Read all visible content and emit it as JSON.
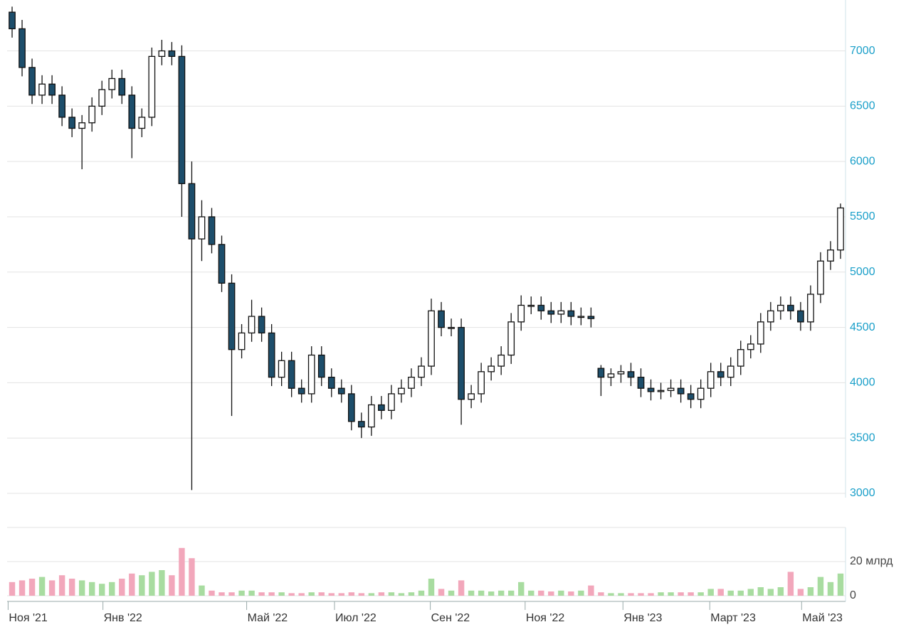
{
  "chart_data": {
    "type": "candlestick",
    "xlim": [
      -0.5,
      83.5
    ],
    "xticks": [
      {
        "value": -0.4,
        "label": "Ноя '21"
      },
      {
        "value": 9.1,
        "label": "Янв '22"
      },
      {
        "value": 23.5,
        "label": "Май '22"
      },
      {
        "value": 32.3,
        "label": "Июл '22"
      },
      {
        "value": 41.9,
        "label": "Сен '22"
      },
      {
        "value": 51.4,
        "label": "Ноя '22"
      },
      {
        "value": 61.2,
        "label": "Янв '23"
      },
      {
        "value": 69.9,
        "label": "Март '23"
      },
      {
        "value": 79.1,
        "label": "Май '23"
      }
    ],
    "ylim": [
      3000,
      7460
    ],
    "yticks": [
      3000,
      3500,
      4000,
      4500,
      5000,
      5500,
      6000,
      6500,
      7000
    ],
    "grid": true,
    "up_color": "#ffffff",
    "down_color": "#1d4e6b",
    "open": [
      7350,
      7200,
      6850,
      6600,
      6700,
      6600,
      6400,
      6300,
      6350,
      6500,
      6650,
      6750,
      6600,
      6300,
      6400,
      6950,
      7000,
      6950,
      5800,
      5300,
      5500,
      5250,
      4900,
      4300,
      4450,
      4600,
      4450,
      4050,
      4200,
      3950,
      3900,
      4250,
      4050,
      3950,
      3900,
      3650,
      3600,
      3800,
      3750,
      3900,
      3950,
      4050,
      4150,
      4650,
      4500,
      4500,
      3850,
      3900,
      4100,
      4150,
      4250,
      4550,
      4700,
      4700,
      4650,
      4620,
      4650,
      4600,
      4600,
      4130,
      4050,
      4080,
      4100,
      4050,
      3950,
      3920,
      3930,
      3950,
      3900,
      3850,
      3950,
      4100,
      4050,
      4150,
      4300,
      4350,
      4550,
      4650,
      4700,
      4650,
      4550,
      4800,
      5100,
      5200
    ],
    "high": [
      7400,
      7280,
      6930,
      6780,
      6780,
      6680,
      6480,
      6420,
      6580,
      6730,
      6830,
      6830,
      6680,
      6480,
      7030,
      7100,
      7080,
      7050,
      6000,
      5650,
      5580,
      5330,
      4980,
      4530,
      4750,
      4680,
      4530,
      4280,
      4280,
      4030,
      4330,
      4330,
      4130,
      4030,
      3980,
      3730,
      3880,
      3880,
      3980,
      4030,
      4130,
      4230,
      4760,
      4730,
      4580,
      4580,
      3980,
      4180,
      4230,
      4330,
      4630,
      4790,
      4780,
      4780,
      4730,
      4730,
      4730,
      4680,
      4680,
      4160,
      4130,
      4160,
      4180,
      4130,
      4030,
      4000,
      4030,
      4030,
      3980,
      4030,
      4180,
      4180,
      4230,
      4380,
      4430,
      4630,
      4730,
      4780,
      4780,
      4730,
      4880,
      5180,
      5280,
      5620
    ],
    "low": [
      7120,
      6770,
      6520,
      6520,
      6520,
      6320,
      6220,
      5930,
      6270,
      6420,
      6570,
      6520,
      6030,
      6220,
      6320,
      6870,
      6870,
      5500,
      3030,
      5100,
      5170,
      4820,
      3700,
      4220,
      4370,
      4370,
      3970,
      3970,
      3870,
      3820,
      3820,
      3970,
      3870,
      3820,
      3570,
      3500,
      3520,
      3670,
      3670,
      3820,
      3870,
      3970,
      4070,
      4420,
      4420,
      3620,
      3770,
      3820,
      4020,
      4070,
      4170,
      4470,
      4620,
      4570,
      4540,
      4540,
      4520,
      4520,
      4500,
      3880,
      3970,
      4000,
      3970,
      3870,
      3840,
      3850,
      3870,
      3820,
      3770,
      3770,
      3870,
      3970,
      3970,
      4070,
      4220,
      4270,
      4470,
      4570,
      4570,
      4470,
      4470,
      4720,
      5020,
      5120
    ],
    "close": [
      7200,
      6850,
      6600,
      6700,
      6600,
      6400,
      6300,
      6350,
      6500,
      6650,
      6750,
      6600,
      6300,
      6400,
      6950,
      7000,
      6950,
      5800,
      5300,
      5500,
      5250,
      4900,
      4300,
      4450,
      4600,
      4450,
      4050,
      4200,
      3950,
      3900,
      4250,
      4050,
      3950,
      3900,
      3650,
      3600,
      3800,
      3750,
      3900,
      3950,
      4050,
      4150,
      4650,
      4500,
      4500,
      3850,
      3900,
      4100,
      4150,
      4250,
      4550,
      4700,
      4700,
      4650,
      4620,
      4650,
      4600,
      4600,
      4580,
      4050,
      4080,
      4100,
      4050,
      3950,
      3920,
      3930,
      3950,
      3900,
      3850,
      3950,
      4100,
      4050,
      4150,
      4300,
      4350,
      4550,
      4650,
      4700,
      4650,
      4550,
      4800,
      5100,
      5200,
      5580
    ],
    "volume": [
      8,
      9,
      10,
      11,
      9,
      12,
      10,
      9,
      8,
      7,
      8,
      10,
      13,
      12,
      14,
      15,
      12,
      28,
      22,
      6,
      3,
      2,
      2,
      3,
      3,
      2,
      2,
      2,
      1.5,
      1.5,
      2,
      2,
      1.5,
      1.5,
      2,
      1.5,
      1.5,
      2,
      2,
      1.5,
      2,
      3,
      10,
      4,
      3,
      9,
      3,
      3,
      2.5,
      3,
      3,
      8,
      3,
      3,
      2.5,
      3,
      2.5,
      3,
      6,
      2,
      1.5,
      1.5,
      1.5,
      1.5,
      1.5,
      2,
      2,
      2,
      2,
      2,
      4,
      4,
      3,
      3,
      4,
      5,
      4,
      5,
      14,
      4,
      5,
      11,
      8,
      13
    ],
    "volume_ylim": [
      0,
      40
    ],
    "volume_yticks": [
      0,
      {
        "value": 20,
        "label": "20 млрд"
      }
    ],
    "volume_up_color": "#a8dca0",
    "volume_down_color": "#f2a7bb"
  }
}
